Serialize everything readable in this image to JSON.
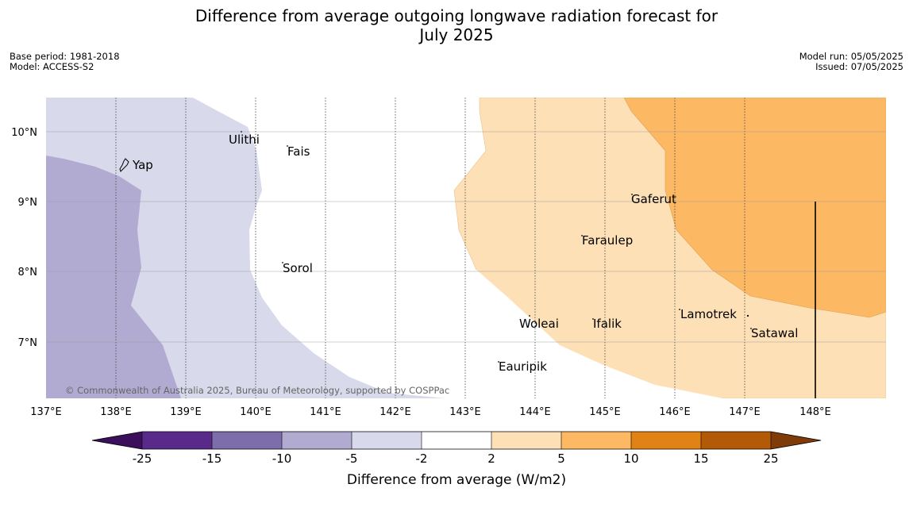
{
  "title_line1": "Difference from average outgoing longwave radiation forecast for",
  "title_line2": "July 2025",
  "base_period": "Base period: 1981-2018",
  "model": "Model: ACCESS-S2",
  "model_run": "Model run: 05/05/2025",
  "issued": "Issued: 07/05/2025",
  "copyright": "© Commonwealth of Australia 2025, Bureau of Meteorology, supported by COSPPac",
  "lat_ticks": [
    "10°N",
    "9°N",
    "8°N",
    "7°N"
  ],
  "lon_ticks": [
    "137°E",
    "138°E",
    "139°E",
    "140°E",
    "141°E",
    "142°E",
    "143°E",
    "144°E",
    "145°E",
    "146°E",
    "147°E",
    "148°E"
  ],
  "places": [
    "Yap",
    "Ulithi",
    "Fais",
    "Gaferut",
    "Faraulep",
    "Sorol",
    "Woleai",
    "Ifalik",
    "Lamotrek",
    "Satawal",
    "Eauripik"
  ],
  "colorbar": {
    "label": "Difference from average (W/m2)",
    "ticks": [
      "-25",
      "-15",
      "-10",
      "-5",
      "-2",
      "2",
      "5",
      "10",
      "15",
      "25"
    ],
    "colors": {
      "lt_-25": "#3c0f5c",
      "-25_-15": "#5a2a8a",
      "-15_-10": "#7e6dab",
      "-10_-5": "#b1abd2",
      "-5_-2": "#d8d9ea",
      "-2_2": "#ffffff",
      "2_5": "#fde0b6",
      "5_10": "#fcb862",
      "10_15": "#e08214",
      "15_25": "#b25a08",
      "gt_25": "#7f3b08"
    }
  }
}
